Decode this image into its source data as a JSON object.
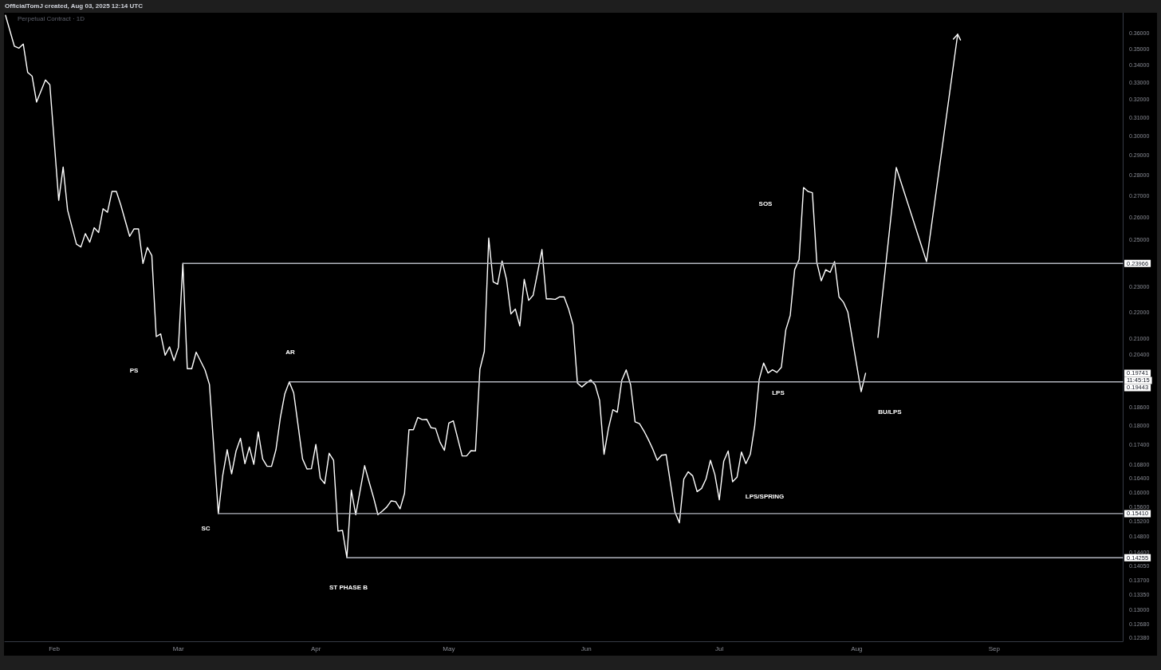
{
  "chart_data": {
    "type": "line",
    "title": "Perpetual Contract · 1D",
    "log": "y",
    "marker": "none",
    "line_style": "solid",
    "xlim": [
      "2025-01-20T20:00",
      "2025-09-30"
    ],
    "ylim": [
      0.123,
      0.373
    ],
    "xticks": [
      {
        "value": "2025-02-01",
        "label": "Feb"
      },
      {
        "value": "2025-03-01",
        "label": "Mar"
      },
      {
        "value": "2025-04-01",
        "label": "Apr"
      },
      {
        "value": "2025-05-01",
        "label": "May"
      },
      {
        "value": "2025-06-01",
        "label": "Jun"
      },
      {
        "value": "2025-07-01",
        "label": "Jul"
      },
      {
        "value": "2025-08-01",
        "label": "Aug"
      },
      {
        "value": "2025-09-01",
        "label": "Sep"
      }
    ],
    "yticks": [
      {
        "value": 0.36,
        "label": "0.36000"
      },
      {
        "value": 0.35,
        "label": "0.35000"
      },
      {
        "value": 0.34,
        "label": "0.34000"
      },
      {
        "value": 0.33,
        "label": "0.33000"
      },
      {
        "value": 0.32,
        "label": "0.32000"
      },
      {
        "value": 0.31,
        "label": "0.31000"
      },
      {
        "value": 0.3,
        "label": "0.30000"
      },
      {
        "value": 0.29,
        "label": "0.29000"
      },
      {
        "value": 0.28,
        "label": "0.28000"
      },
      {
        "value": 0.27,
        "label": "0.27000"
      },
      {
        "value": 0.26,
        "label": "0.26000"
      },
      {
        "value": 0.25,
        "label": "0.25000"
      },
      {
        "value": 0.23,
        "label": "0.23000"
      },
      {
        "value": 0.22,
        "label": "0.22000"
      },
      {
        "value": 0.21,
        "label": "0.21000"
      },
      {
        "value": 0.204,
        "label": "0.20400"
      },
      {
        "value": 0.186,
        "label": "0.18600"
      },
      {
        "value": 0.18,
        "label": "0.18000"
      },
      {
        "value": 0.174,
        "label": "0.17400"
      },
      {
        "value": 0.168,
        "label": "0.16800"
      },
      {
        "value": 0.164,
        "label": "0.16400"
      },
      {
        "value": 0.16,
        "label": "0.16000"
      },
      {
        "value": 0.156,
        "label": "0.15600"
      },
      {
        "value": 0.152,
        "label": "0.15200"
      },
      {
        "value": 0.148,
        "label": "0.14800"
      },
      {
        "value": 0.144,
        "label": "0.14400"
      },
      {
        "value": 0.1405,
        "label": "0.14050"
      },
      {
        "value": 0.137,
        "label": "0.13700"
      },
      {
        "value": 0.1335,
        "label": "0.13350"
      },
      {
        "value": 0.13,
        "label": "0.13000"
      },
      {
        "value": 0.1268,
        "label": "0.12680"
      },
      {
        "value": 0.1238,
        "label": "0.12380"
      }
    ],
    "series": [
      {
        "color": "#ffffff",
        "x": [
          "2025-01-21",
          "2025-01-23",
          "2025-01-24",
          "2025-01-25",
          "2025-01-26",
          "2025-01-27",
          "2025-01-28",
          "2025-01-30",
          "2025-01-31",
          "2025-02-02",
          "2025-02-03",
          "2025-02-04",
          "2025-02-06",
          "2025-02-07",
          "2025-02-08",
          "2025-02-09",
          "2025-02-10",
          "2025-02-11",
          "2025-02-12",
          "2025-02-13",
          "2025-02-14",
          "2025-02-15",
          "2025-02-16",
          "2025-02-18",
          "2025-02-19",
          "2025-02-20",
          "2025-02-21",
          "2025-02-22",
          "2025-02-23",
          "2025-02-24",
          "2025-02-25",
          "2025-02-26",
          "2025-02-27",
          "2025-02-28",
          "2025-03-01",
          "2025-03-02",
          "2025-03-03",
          "2025-03-04",
          "2025-03-05",
          "2025-03-07",
          "2025-03-08",
          "2025-03-10",
          "2025-03-11",
          "2025-03-12",
          "2025-03-13",
          "2025-03-14",
          "2025-03-15",
          "2025-03-16",
          "2025-03-17",
          "2025-03-18",
          "2025-03-19",
          "2025-03-20",
          "2025-03-21",
          "2025-03-22",
          "2025-03-23",
          "2025-03-24",
          "2025-03-25",
          "2025-03-26",
          "2025-03-27",
          "2025-03-28",
          "2025-03-29",
          "2025-03-30",
          "2025-03-31",
          "2025-04-01",
          "2025-04-02",
          "2025-04-03",
          "2025-04-04",
          "2025-04-05",
          "2025-04-06",
          "2025-04-07",
          "2025-04-08",
          "2025-04-09",
          "2025-04-10",
          "2025-04-12",
          "2025-04-13",
          "2025-04-14",
          "2025-04-15",
          "2025-04-16",
          "2025-04-17",
          "2025-04-18",
          "2025-04-19",
          "2025-04-20",
          "2025-04-21",
          "2025-04-22",
          "2025-04-23",
          "2025-04-24",
          "2025-04-25",
          "2025-04-26",
          "2025-04-27",
          "2025-04-28",
          "2025-04-29",
          "2025-04-30",
          "2025-05-01",
          "2025-05-02",
          "2025-05-04",
          "2025-05-05",
          "2025-05-06",
          "2025-05-07",
          "2025-05-08",
          "2025-05-09",
          "2025-05-10",
          "2025-05-11",
          "2025-05-12",
          "2025-05-13",
          "2025-05-14",
          "2025-05-15",
          "2025-05-16",
          "2025-05-17",
          "2025-05-18",
          "2025-05-19",
          "2025-05-20",
          "2025-05-21",
          "2025-05-22",
          "2025-05-23",
          "2025-05-24",
          "2025-05-25",
          "2025-05-26",
          "2025-05-27",
          "2025-05-28",
          "2025-05-29",
          "2025-05-30",
          "2025-05-31",
          "2025-06-01",
          "2025-06-02",
          "2025-06-03",
          "2025-06-04",
          "2025-06-05",
          "2025-06-06",
          "2025-06-07",
          "2025-06-08",
          "2025-06-09",
          "2025-06-10",
          "2025-06-11",
          "2025-06-12",
          "2025-06-13",
          "2025-06-14",
          "2025-06-15",
          "2025-06-16",
          "2025-06-17",
          "2025-06-18",
          "2025-06-19",
          "2025-06-21",
          "2025-06-22",
          "2025-06-23",
          "2025-06-24",
          "2025-06-25",
          "2025-06-26",
          "2025-06-27",
          "2025-06-28",
          "2025-06-29",
          "2025-06-30",
          "2025-07-01",
          "2025-07-02",
          "2025-07-03",
          "2025-07-04",
          "2025-07-05",
          "2025-07-06",
          "2025-07-07",
          "2025-07-08",
          "2025-07-09",
          "2025-07-10",
          "2025-07-11",
          "2025-07-12",
          "2025-07-13",
          "2025-07-14",
          "2025-07-15",
          "2025-07-16",
          "2025-07-17",
          "2025-07-18",
          "2025-07-19",
          "2025-07-20",
          "2025-07-21",
          "2025-07-22",
          "2025-07-23",
          "2025-07-24",
          "2025-07-25",
          "2025-07-26",
          "2025-07-27",
          "2025-07-28",
          "2025-07-29",
          "2025-07-30",
          "2025-08-02",
          "2025-08-03"
        ],
        "values": [
          0.3713,
          0.3516,
          0.3504,
          0.353,
          0.3357,
          0.3335,
          0.3186,
          0.3313,
          0.3285,
          0.2679,
          0.2841,
          0.2633,
          0.2479,
          0.2467,
          0.2526,
          0.2488,
          0.2552,
          0.2531,
          0.2639,
          0.2623,
          0.2721,
          0.2721,
          0.2657,
          0.2514,
          0.2547,
          0.2547,
          0.2396,
          0.2465,
          0.243,
          0.2106,
          0.2116,
          0.2038,
          0.2068,
          0.2019,
          0.2066,
          0.2397,
          0.199,
          0.199,
          0.2049,
          0.1986,
          0.1935,
          0.1541,
          0.1649,
          0.1725,
          0.1653,
          0.1721,
          0.176,
          0.1683,
          0.1733,
          0.1681,
          0.178,
          0.1697,
          0.1675,
          0.1675,
          0.1725,
          0.1826,
          0.1904,
          0.1944,
          0.1907,
          0.18,
          0.1697,
          0.1667,
          0.1668,
          0.1741,
          0.164,
          0.1625,
          0.1714,
          0.1693,
          0.1494,
          0.1496,
          0.1426,
          0.1606,
          0.1538,
          0.1677,
          0.163,
          0.1586,
          0.1538,
          0.1548,
          0.1559,
          0.1576,
          0.1574,
          0.1554,
          0.1597,
          0.1787,
          0.1787,
          0.1826,
          0.1819,
          0.182,
          0.1793,
          0.1791,
          0.1748,
          0.1723,
          0.1808,
          0.1815,
          0.1706,
          0.1706,
          0.1722,
          0.1721,
          0.1988,
          0.2052,
          0.2506,
          0.232,
          0.231,
          0.2407,
          0.233,
          0.2192,
          0.2211,
          0.2146,
          0.233,
          0.2245,
          0.2265,
          0.2357,
          0.2456,
          0.2251,
          0.2251,
          0.2249,
          0.2259,
          0.2259,
          0.2212,
          0.2151,
          0.194,
          0.1927,
          0.194,
          0.1951,
          0.1934,
          0.1882,
          0.1711,
          0.1791,
          0.1851,
          0.1843,
          0.1949,
          0.1986,
          0.1934,
          0.1812,
          0.1806,
          0.1783,
          0.1756,
          0.1727,
          0.1693,
          0.1708,
          0.171,
          0.1545,
          0.1516,
          0.1638,
          0.1659,
          0.1647,
          0.1602,
          0.1611,
          0.1638,
          0.1693,
          0.1651,
          0.1579,
          0.169,
          0.1721,
          0.163,
          0.1643,
          0.1718,
          0.1683,
          0.1711,
          0.18,
          0.1953,
          0.201,
          0.1975,
          0.1986,
          0.1977,
          0.1995,
          0.2131,
          0.2186,
          0.237,
          0.2413,
          0.274,
          0.2721,
          0.2715,
          0.2401,
          0.2324,
          0.237,
          0.2359,
          0.2404,
          0.2259,
          0.2238,
          0.2199,
          0.1911,
          0.19741
        ]
      },
      {
        "color": "#b2b5be",
        "x": [
          "2025-03-02",
          "2025-09-30"
        ],
        "values": [
          0.23966,
          0.23966
        ],
        "value_labels": [
          null,
          "0.23966"
        ]
      },
      {
        "color": "#b2b5be",
        "x": [
          "2025-03-26",
          "2025-09-30"
        ],
        "values": [
          0.19443,
          0.19443
        ],
        "value_labels": [
          null,
          "0.19443"
        ]
      },
      {
        "color": "#b2b5be",
        "x": [
          "2025-03-10",
          "2025-09-30"
        ],
        "values": [
          0.1541,
          0.1541
        ],
        "value_labels": [
          null,
          "0.15410"
        ]
      },
      {
        "color": "#b2b5be",
        "x": [
          "2025-04-08",
          "2025-09-30"
        ],
        "values": [
          0.14255,
          0.14255
        ],
        "value_labels": [
          null,
          "0.14255"
        ]
      }
    ],
    "annotations": [
      "OfficialTomJ created, Aug 03, 2025 12:14 UTC",
      "0.19741",
      "11:45:15",
      "PS",
      "AR",
      "SC",
      "ST PHASE B",
      "LPS/SPRING",
      "LPS",
      "SOS",
      "BU/LPS"
    ]
  }
}
